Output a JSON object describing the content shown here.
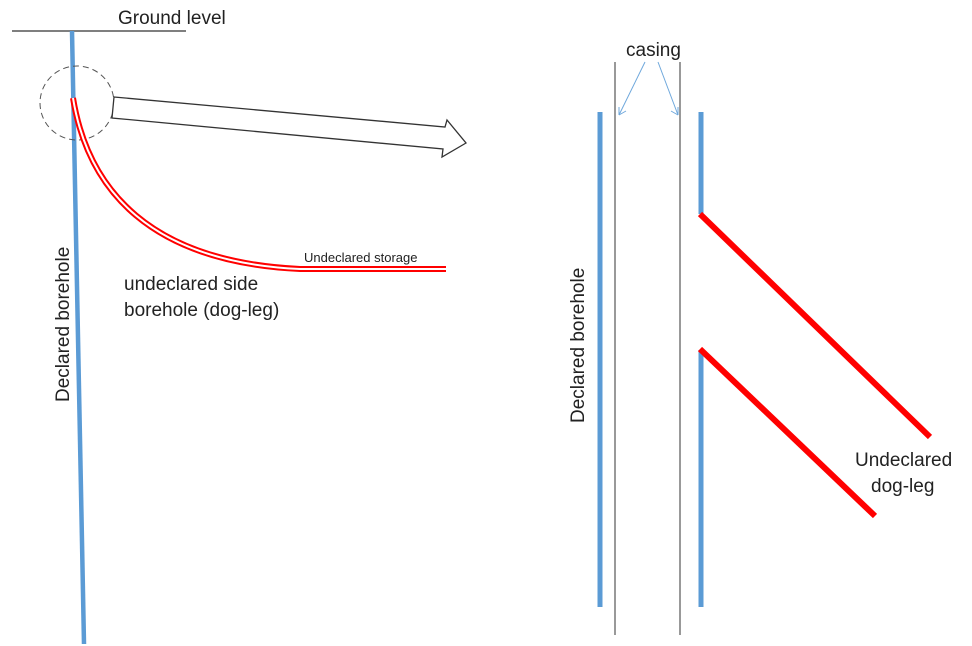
{
  "diagram": {
    "colors": {
      "declared": "#5b9bd5",
      "undeclared": "#ff0000",
      "outline": "#333333",
      "callout": "#6fa8dc"
    },
    "left": {
      "ground_label": "Ground level",
      "declared_label": "Declared borehole",
      "side_label_line1": "undeclared side",
      "side_label_line2": "borehole (dog-leg)",
      "storage_label": "Undeclared storage"
    },
    "right": {
      "casing_label": "casing",
      "declared_label": "Declared borehole",
      "dogleg_label_line1": "Undeclared",
      "dogleg_label_line2": "dog-leg"
    }
  }
}
